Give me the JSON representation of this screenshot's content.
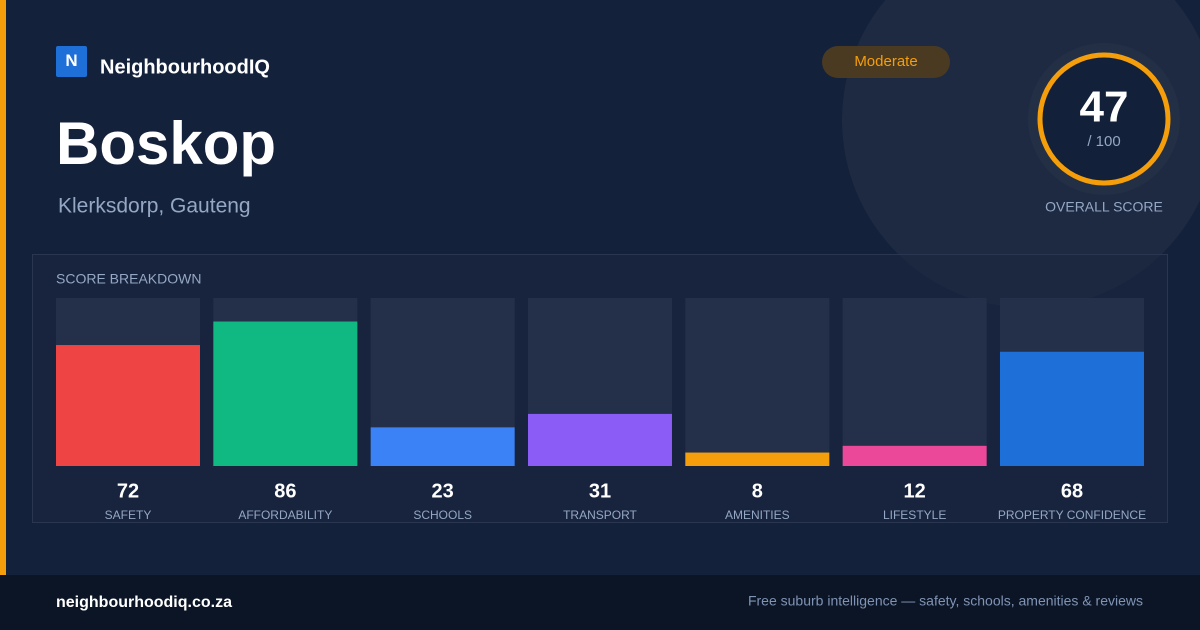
{
  "brand": {
    "logo": "N",
    "name": "NeighbourhoodIQ"
  },
  "suburb": {
    "name": "Boskop",
    "location": "Klerksdorp, Gauteng"
  },
  "badge": "Moderate",
  "overall": {
    "score": 47,
    "out_of": "/ 100",
    "label": "OVERALL SCORE"
  },
  "chart_data": {
    "type": "bar",
    "title": "SCORE BREAKDOWN",
    "categories": [
      "SAFETY",
      "AFFORDABILITY",
      "SCHOOLS",
      "TRANSPORT",
      "AMENITIES",
      "LIFESTYLE",
      "PROPERTY CONFIDENCE"
    ],
    "values": [
      72,
      86,
      23,
      31,
      8,
      12,
      68
    ],
    "colors": [
      "#ef4444",
      "#10b981",
      "#3b82f6",
      "#8b5cf6",
      "#f59e0b",
      "#ec4899",
      "#1f6fd8"
    ],
    "ylim": [
      0,
      100
    ]
  },
  "footer": {
    "site": "neighbourhoodiq.co.za",
    "tagline": "Free suburb intelligence — safety, schools, amenities & reviews"
  }
}
